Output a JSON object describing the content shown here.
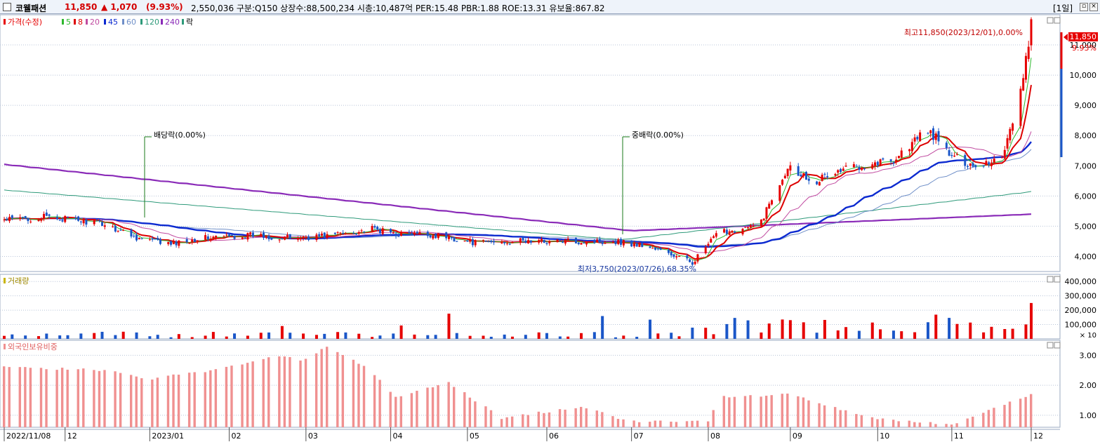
{
  "header": {
    "stock_name": "코웰패션",
    "price": "11,850",
    "change": "▲ 1,070",
    "change_pct": "(9.93%)",
    "info": "2,550,036  구분:Q150  상장수:88,500,234  시총:10,487억  PER:15.48  PBR:1.88  ROE:13.31  유보율:867.82",
    "period": "[1일]"
  },
  "colors": {
    "up": "#e60000",
    "down": "#1a56c8",
    "ma5": "#2eb82e",
    "ma8": "#dd0000",
    "ma20": "#c04aa0",
    "ma45": "#0c2ad0",
    "ma60": "#6f8fc8",
    "ma120": "#2e9a7a",
    "ma240": "#8a2bb8",
    "foreign": "#f09090",
    "grid": "#b8c4d8"
  },
  "chart_data": [
    {
      "type": "candlestick",
      "title": "",
      "legend": {
        "price": "가격(수정)",
        "ma": [
          "5",
          "8",
          "20",
          "45",
          "60",
          "120",
          "240"
        ],
        "ex": "락"
      },
      "y_ticks": [
        "11,000",
        "10,000",
        "9,000",
        "8,000",
        "7,000",
        "6,000",
        "5,000",
        "4,000"
      ],
      "ylim": [
        3500,
        12000
      ],
      "last_price_label": "11,850",
      "last_pct_label": "9.93%",
      "annotations": {
        "high": "최고11,850(2023/12/01),0.00%",
        "low": "최저3,750(2023/07/26),68.35%",
        "dividend_1": "배당락(0.00%)",
        "dividend_2": "중배락(0.00%)"
      },
      "price_path": [
        [
          "2022-11-08",
          5200
        ],
        [
          "2022-11-25",
          5300
        ],
        [
          "2022-12-15",
          5100
        ],
        [
          "2022-12-29",
          4600
        ],
        [
          "2023-01-10",
          4400
        ],
        [
          "2023-01-20",
          4600
        ],
        [
          "2023-02-10",
          4700
        ],
        [
          "2023-02-25",
          4600
        ],
        [
          "2023-03-10",
          4700
        ],
        [
          "2023-03-27",
          4900
        ],
        [
          "2023-04-05",
          4750
        ],
        [
          "2023-04-20",
          4700
        ],
        [
          "2023-05-05",
          4450
        ],
        [
          "2023-05-20",
          4500
        ],
        [
          "2023-06-15",
          4500
        ],
        [
          "2023-06-28",
          4500
        ],
        [
          "2023-07-10",
          4300
        ],
        [
          "2023-07-26",
          3800
        ],
        [
          "2023-08-05",
          4800
        ],
        [
          "2023-08-20",
          5000
        ],
        [
          "2023-08-31",
          7000
        ],
        [
          "2023-09-10",
          6500
        ],
        [
          "2023-09-25",
          7000
        ],
        [
          "2023-10-10",
          7200
        ],
        [
          "2023-10-23",
          8200
        ],
        [
          "2023-11-01",
          7300
        ],
        [
          "2023-11-10",
          7000
        ],
        [
          "2023-11-20",
          7300
        ],
        [
          "2023-11-28",
          9800
        ],
        [
          "2023-12-01",
          11850
        ]
      ]
    },
    {
      "type": "bar",
      "title": "거래량",
      "y_ticks": [
        "400,000",
        "300,000",
        "200,000",
        "100,000"
      ],
      "unit_label": "× 10",
      "ylim": [
        0,
        450000
      ]
    },
    {
      "type": "bar",
      "title": "외국인보유비중",
      "y_ticks": [
        "3.00",
        "2.00",
        "1.00"
      ],
      "ylim": [
        0.6,
        3.5
      ],
      "path": [
        [
          "2022-11-08",
          2.6
        ],
        [
          "2022-12-20",
          2.5
        ],
        [
          "2023-01-01",
          2.2
        ],
        [
          "2023-01-25",
          2.5
        ],
        [
          "2023-02-20",
          3.0
        ],
        [
          "2023-03-01",
          2.8
        ],
        [
          "2023-03-10",
          3.3
        ],
        [
          "2023-03-25",
          2.6
        ],
        [
          "2023-04-05",
          1.6
        ],
        [
          "2023-04-25",
          2.1
        ],
        [
          "2023-05-05",
          1.5
        ],
        [
          "2023-05-15",
          0.9
        ],
        [
          "2023-06-15",
          1.3
        ],
        [
          "2023-07-01",
          0.8
        ],
        [
          "2023-08-01",
          0.8
        ],
        [
          "2023-08-05",
          1.6
        ],
        [
          "2023-09-01",
          1.7
        ],
        [
          "2023-10-01",
          0.9
        ],
        [
          "2023-11-01",
          0.7
        ],
        [
          "2023-12-01",
          1.7
        ]
      ]
    }
  ],
  "x_axis": {
    "labels": [
      {
        "date": "2022-11-08",
        "text": "2022/11/08"
      },
      {
        "date": "2022-12-01",
        "text": "12"
      },
      {
        "date": "2023-01-02",
        "text": "2023/01"
      },
      {
        "date": "2023-02-01",
        "text": "02"
      },
      {
        "date": "2023-03-02",
        "text": "03"
      },
      {
        "date": "2023-04-03",
        "text": "04"
      },
      {
        "date": "2023-05-02",
        "text": "05"
      },
      {
        "date": "2023-06-01",
        "text": "06"
      },
      {
        "date": "2023-07-03",
        "text": "07"
      },
      {
        "date": "2023-08-01",
        "text": "08"
      },
      {
        "date": "2023-09-01",
        "text": "09"
      },
      {
        "date": "2023-10-04",
        "text": "10"
      },
      {
        "date": "2023-11-01",
        "text": "11"
      },
      {
        "date": "2023-12-01",
        "text": "12"
      }
    ]
  }
}
